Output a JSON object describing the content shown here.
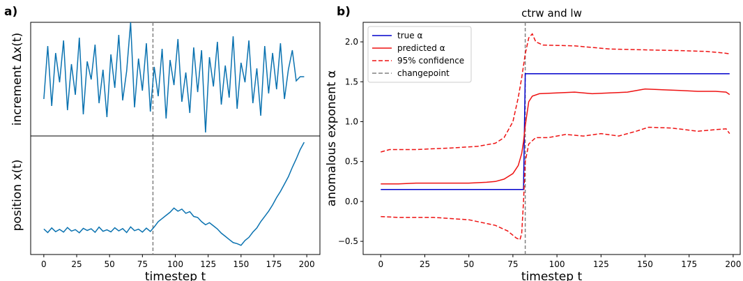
{
  "chart_data": [
    {
      "type": "line",
      "panel_label": "a)",
      "ylabel": "increment Δx(t)",
      "xlim": [
        -10,
        210
      ],
      "ylim": [
        -4.25,
        3.9
      ],
      "x": [
        0,
        3,
        6,
        9,
        12,
        15,
        18,
        21,
        24,
        27,
        30,
        33,
        36,
        39,
        42,
        45,
        48,
        51,
        54,
        57,
        60,
        63,
        66,
        69,
        72,
        75,
        78,
        81,
        84,
        87,
        90,
        93,
        96,
        99,
        102,
        105,
        108,
        111,
        114,
        117,
        120,
        123,
        126,
        129,
        132,
        135,
        138,
        141,
        144,
        147,
        150,
        153,
        156,
        159,
        162,
        165,
        168,
        171,
        174,
        177,
        180,
        183,
        186,
        189,
        192,
        195,
        198
      ],
      "series": [
        {
          "color": "#0a72b0",
          "values": [
            -1.6,
            2.2,
            -2.1,
            1.7,
            -0.4,
            2.6,
            -2.4,
            0.9,
            -1.3,
            2.8,
            -2.7,
            1.1,
            -0.2,
            2.3,
            -1.9,
            0.5,
            -2.9,
            1.6,
            -0.8,
            3.0,
            -1.7,
            0.4,
            3.9,
            -2.2,
            1.3,
            -1.0,
            2.4,
            -2.5,
            0.7,
            -1.4,
            2.0,
            -3.0,
            1.2,
            -0.6,
            2.7,
            -1.8,
            0.3,
            -2.6,
            2.1,
            -1.1,
            1.9,
            -4.0,
            1.4,
            -0.7,
            2.5,
            -2.0,
            0.8,
            -1.5,
            2.9,
            -2.3,
            1.0,
            -0.4,
            2.6,
            -1.9,
            0.6,
            -2.8,
            2.2,
            -1.2,
            1.7,
            -0.9,
            2.4,
            -1.6,
            0.5,
            1.9,
            -0.3,
            0.0,
            0.0
          ]
        }
      ],
      "changepoint": {
        "x": 83,
        "color": "#808080"
      }
    },
    {
      "type": "line",
      "ylabel": "position x(t)",
      "xlabel": "timestep t",
      "xlim": [
        -10,
        210
      ],
      "ylim": [
        -11.7,
        45
      ],
      "xticks": [
        0,
        25,
        50,
        75,
        100,
        125,
        150,
        175,
        200
      ],
      "x": [
        0,
        3,
        6,
        9,
        12,
        15,
        18,
        21,
        24,
        27,
        30,
        33,
        36,
        39,
        42,
        45,
        48,
        51,
        54,
        57,
        60,
        63,
        66,
        69,
        72,
        75,
        78,
        81,
        84,
        87,
        90,
        93,
        96,
        99,
        102,
        105,
        108,
        111,
        114,
        117,
        120,
        123,
        126,
        129,
        132,
        135,
        138,
        141,
        144,
        147,
        150,
        153,
        156,
        159,
        162,
        165,
        168,
        171,
        174,
        177,
        180,
        183,
        186,
        189,
        192,
        195,
        198
      ],
      "series": [
        {
          "color": "#0a72b0",
          "values": [
            0.5,
            -1.2,
            1.0,
            -0.8,
            0.3,
            -1.0,
            1.2,
            -0.5,
            0.2,
            -1.3,
            0.8,
            -0.2,
            0.6,
            -1.1,
            1.4,
            -0.6,
            0.1,
            -0.9,
            1.1,
            -0.4,
            0.7,
            -1.2,
            1.5,
            -0.3,
            0.4,
            -1.0,
            0.9,
            -0.7,
            1.5,
            4.0,
            5.5,
            7.0,
            8.5,
            10.5,
            9.0,
            10.0,
            8.0,
            8.8,
            6.5,
            6.0,
            4.0,
            2.5,
            3.5,
            2.0,
            0.5,
            -1.5,
            -3.0,
            -4.5,
            -6.0,
            -6.5,
            -7.3,
            -5.0,
            -3.5,
            -1.0,
            1.0,
            4.0,
            6.5,
            9.0,
            12.0,
            15.5,
            18.5,
            22.0,
            25.5,
            30.0,
            34.0,
            38.5,
            42.0
          ]
        }
      ],
      "changepoint": {
        "x": 83,
        "color": "#808080"
      }
    },
    {
      "type": "line",
      "panel_label": "b)",
      "title": "ctrw and lw",
      "xlabel": "timestep t",
      "ylabel": "anomalous exponent α",
      "xlim": [
        -10,
        204
      ],
      "ylim": [
        -0.665,
        2.245
      ],
      "xticks": [
        0,
        25,
        50,
        75,
        100,
        125,
        150,
        175,
        200
      ],
      "yticks": [
        {
          "value": -0.5,
          "label": "−0.5"
        },
        {
          "value": 0,
          "label": "0.0"
        },
        0.5,
        {
          "value": 1,
          "label": "1.0"
        },
        1.5,
        {
          "value": 2,
          "label": "2.0"
        }
      ],
      "legend": "upper left",
      "series": [
        {
          "name": "true α",
          "color": "#0000cc",
          "style": "solid",
          "x": [
            0,
            81,
            82,
            198
          ],
          "values": [
            0.15,
            0.15,
            1.6,
            1.6
          ]
        },
        {
          "name": "predicted α",
          "color": "#ee1111",
          "style": "solid",
          "x": [
            0,
            10,
            20,
            30,
            40,
            50,
            60,
            65,
            70,
            75,
            78,
            80,
            81,
            82,
            84,
            86,
            90,
            100,
            110,
            120,
            130,
            140,
            150,
            160,
            170,
            180,
            190,
            196,
            198
          ],
          "values": [
            0.22,
            0.22,
            0.23,
            0.23,
            0.23,
            0.23,
            0.24,
            0.25,
            0.28,
            0.35,
            0.45,
            0.6,
            0.75,
            0.95,
            1.25,
            1.32,
            1.35,
            1.36,
            1.37,
            1.35,
            1.36,
            1.37,
            1.41,
            1.4,
            1.39,
            1.38,
            1.38,
            1.37,
            1.34
          ]
        },
        {
          "name": "95% confidence",
          "color": "#ee1111",
          "style": "dashed",
          "x": [
            0,
            5,
            20,
            40,
            55,
            65,
            70,
            75,
            78,
            80,
            82,
            84,
            86,
            88,
            92,
            110,
            130,
            150,
            170,
            185,
            195,
            198
          ],
          "values": [
            0.62,
            0.65,
            0.65,
            0.67,
            0.69,
            0.73,
            0.8,
            1.0,
            1.3,
            1.55,
            1.85,
            2.05,
            2.1,
            2.0,
            1.96,
            1.95,
            1.91,
            1.9,
            1.89,
            1.88,
            1.86,
            1.85
          ]
        },
        {
          "color": "#ee1111",
          "style": "dashed",
          "x": [
            0,
            10,
            30,
            50,
            65,
            72,
            77,
            79,
            80,
            81,
            82,
            84,
            88,
            95,
            105,
            115,
            125,
            135,
            145,
            152,
            165,
            180,
            190,
            196,
            198
          ],
          "values": [
            -0.19,
            -0.2,
            -0.2,
            -0.23,
            -0.3,
            -0.37,
            -0.46,
            -0.48,
            -0.4,
            0.0,
            0.5,
            0.72,
            0.8,
            0.8,
            0.84,
            0.82,
            0.85,
            0.82,
            0.88,
            0.93,
            0.92,
            0.88,
            0.9,
            0.91,
            0.85
          ]
        }
      ],
      "changepoint": {
        "name": "changepoint",
        "x": 82,
        "color": "#808080"
      }
    }
  ]
}
